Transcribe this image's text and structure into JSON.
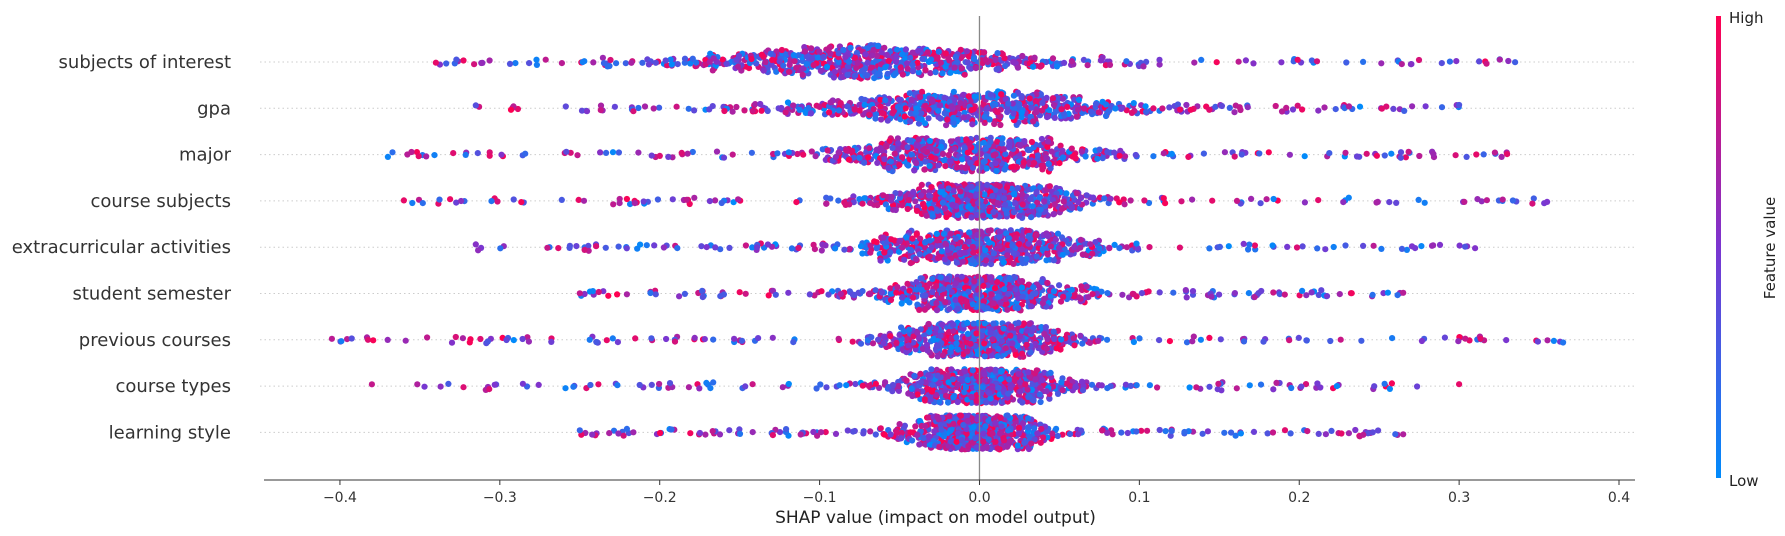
{
  "chart_data": {
    "type": "scatter",
    "subtype": "shap-beeswarm",
    "title": "",
    "xlabel": "SHAP value (impact on model output)",
    "ylabel": "",
    "xlim": [
      -0.45,
      0.41
    ],
    "xticks": [
      -0.4,
      -0.3,
      -0.2,
      -0.1,
      0.0,
      0.1,
      0.2,
      0.3,
      0.4
    ],
    "xtick_labels": [
      "−0.4",
      "−0.3",
      "−0.2",
      "−0.1",
      "0.0",
      "0.1",
      "0.2",
      "0.3",
      "0.4"
    ],
    "grid": "horizontal dotted row lines",
    "features": [
      {
        "name": "subjects of interest",
        "min": -0.34,
        "max": 0.335,
        "center": -0.07,
        "spread": 0.13
      },
      {
        "name": "gpa",
        "min": -0.315,
        "max": 0.3,
        "center": -0.01,
        "spread": 0.12
      },
      {
        "name": "major",
        "min": -0.37,
        "max": 0.33,
        "center": -0.01,
        "spread": 0.1
      },
      {
        "name": "course subjects",
        "min": -0.36,
        "max": 0.355,
        "center": 0.0,
        "spread": 0.07
      },
      {
        "name": "extracurricular activities",
        "min": -0.315,
        "max": 0.31,
        "center": 0.0,
        "spread": 0.08
      },
      {
        "name": "student semester",
        "min": -0.25,
        "max": 0.265,
        "center": 0.0,
        "spread": 0.07
      },
      {
        "name": "previous courses",
        "min": -0.405,
        "max": 0.365,
        "center": 0.0,
        "spread": 0.07
      },
      {
        "name": "course types",
        "min": -0.38,
        "max": 0.3,
        "center": 0.0,
        "spread": 0.06
      },
      {
        "name": "learning style",
        "min": -0.25,
        "max": 0.265,
        "center": 0.0,
        "spread": 0.05
      }
    ],
    "colorbar": {
      "label": "Feature value",
      "high_label": "High",
      "low_label": "Low",
      "low_color": "#008bfb",
      "mid_color": "#7b35d0",
      "high_color": "#ff0051"
    },
    "zero_line": 0.0
  }
}
